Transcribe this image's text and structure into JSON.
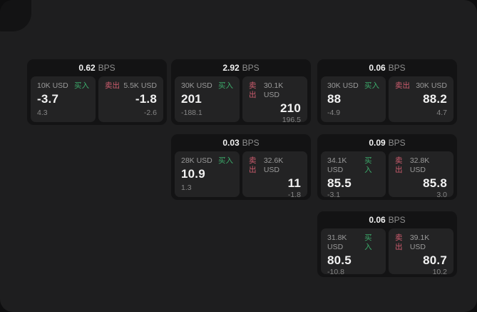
{
  "labels": {
    "bps_unit": "BPS",
    "buy": "买入",
    "sell": "卖出"
  },
  "colors": {
    "page_bg": "#1e1e1f",
    "card_bg": "#131314",
    "panel_bg": "#232324",
    "text_primary": "#f2f2f2",
    "text_muted": "#8f8f8f",
    "buy_green": "#3cab6b",
    "sell_red": "#cd5c6e"
  },
  "cards": [
    {
      "col": 0,
      "row": 0,
      "bps": "0.62",
      "buy": {
        "notional": "10K USD",
        "value": "-3.7",
        "delta": "4.3"
      },
      "sell": {
        "notional": "5.5K USD",
        "value": "-1.8",
        "delta": "-2.6"
      }
    },
    {
      "col": 1,
      "row": 0,
      "bps": "2.92",
      "buy": {
        "notional": "30K USD",
        "value": "201",
        "delta": "-188.1"
      },
      "sell": {
        "notional": "30.1K USD",
        "value": "210",
        "delta": "196.5"
      }
    },
    {
      "col": 2,
      "row": 0,
      "bps": "0.06",
      "buy": {
        "notional": "30K USD",
        "value": "88",
        "delta": "-4.9"
      },
      "sell": {
        "notional": "30K USD",
        "value": "88.2",
        "delta": "4.7"
      }
    },
    {
      "col": 1,
      "row": 1,
      "bps": "0.03",
      "buy": {
        "notional": "28K USD",
        "value": "10.9",
        "delta": "1.3"
      },
      "sell": {
        "notional": "32.6K USD",
        "value": "11",
        "delta": "-1.8"
      }
    },
    {
      "col": 2,
      "row": 1,
      "bps": "0.09",
      "buy": {
        "notional": "34.1K USD",
        "value": "85.5",
        "delta": "-3.1"
      },
      "sell": {
        "notional": "32.8K USD",
        "value": "85.8",
        "delta": "3.0"
      }
    },
    {
      "col": 2,
      "row": 2,
      "bps": "0.06",
      "buy": {
        "notional": "31.8K USD",
        "value": "80.5",
        "delta": "-10.8"
      },
      "sell": {
        "notional": "39.1K USD",
        "value": "80.7",
        "delta": "10.2"
      }
    }
  ]
}
